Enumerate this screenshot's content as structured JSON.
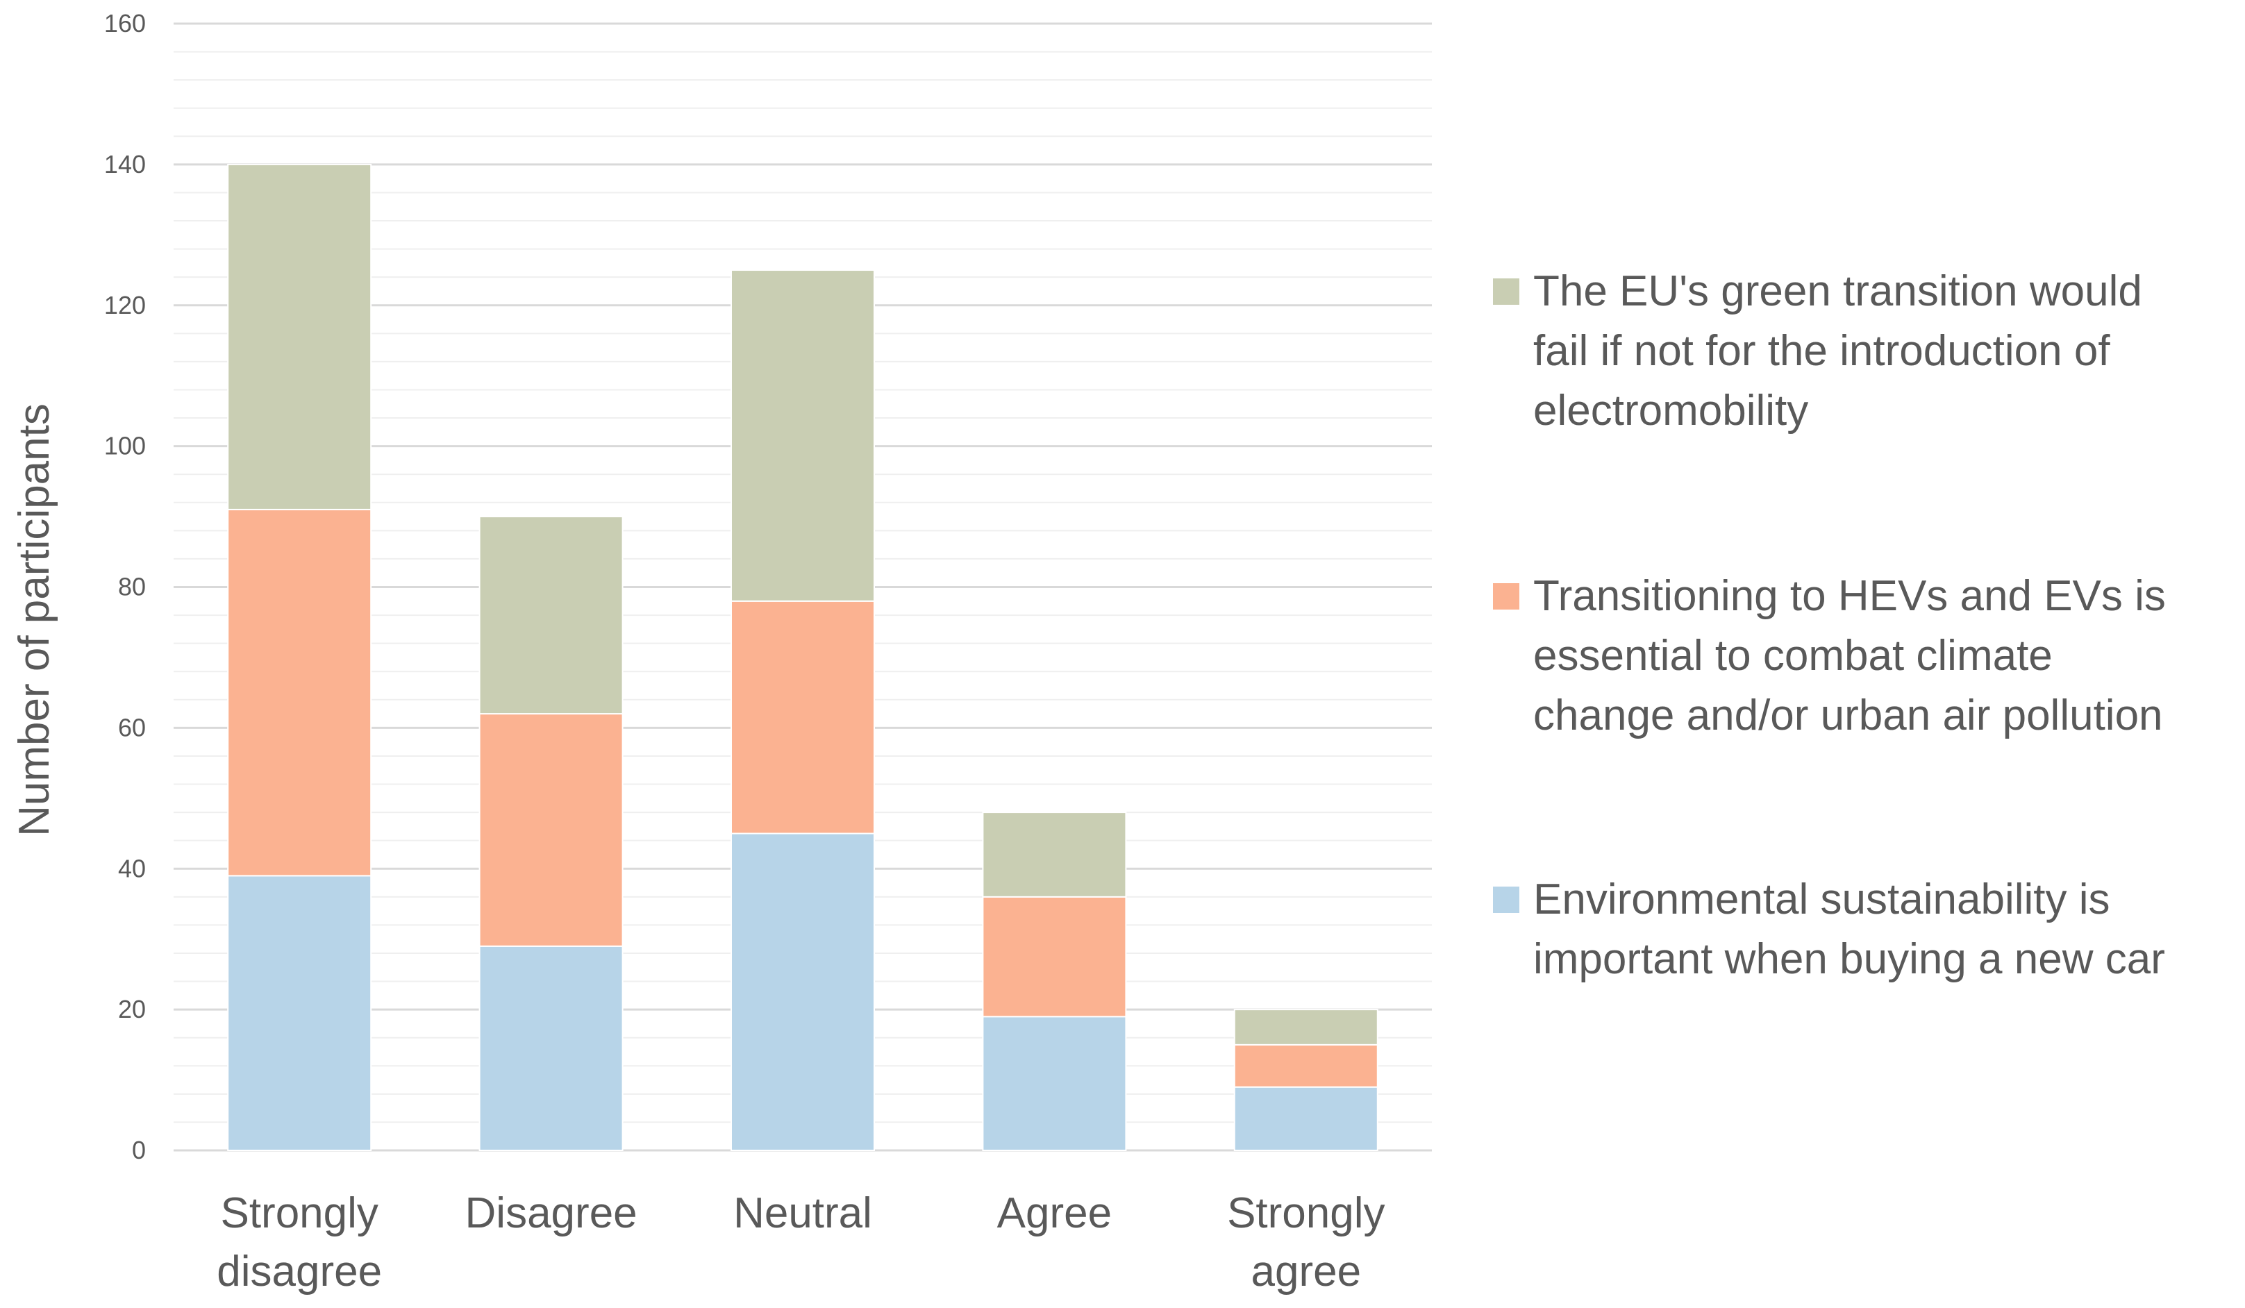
{
  "chart_data": {
    "type": "bar",
    "stacked": true,
    "title": "",
    "xlabel": "",
    "ylabel": "Number of participants",
    "ylim": [
      0,
      160
    ],
    "ytick_step": 20,
    "minor_grid_step": 4,
    "yticks": [
      "0",
      "20",
      "40",
      "60",
      "80",
      "100",
      "120",
      "140",
      "160"
    ],
    "categories": [
      "Strongly disagree",
      "Disagree",
      "Neutral",
      "Agree",
      "Strongly agree"
    ],
    "category_lines": [
      [
        "Strongly",
        "disagree"
      ],
      [
        "Disagree"
      ],
      [
        "Neutral"
      ],
      [
        "Agree"
      ],
      [
        "Strongly",
        "agree"
      ]
    ],
    "series": [
      {
        "name": "Environmental sustainability is important when buying a new car",
        "legend_lines": [
          "Environmental sustainability is",
          "important when buying a new car"
        ],
        "color": "#b7d4e8",
        "values": [
          39,
          29,
          45,
          19,
          9
        ]
      },
      {
        "name": "Transitioning to HEVs and EVs is essential to combat climate change and/or urban air pollution",
        "legend_lines": [
          "Transitioning to HEVs and EVs is",
          "essential to combat climate",
          "change and/or urban air pollution"
        ],
        "color": "#fbb291",
        "values": [
          52,
          33,
          33,
          17,
          6
        ]
      },
      {
        "name": "The EU's green transition would fail if not for the introduction of electromobility",
        "legend_lines": [
          "The EU's green transition would",
          "fail if not for the introduction of",
          "electromobility"
        ],
        "color": "#c9ceb3",
        "values": [
          49,
          28,
          47,
          12,
          5
        ]
      }
    ],
    "legend_position": "right",
    "grid": true
  }
}
